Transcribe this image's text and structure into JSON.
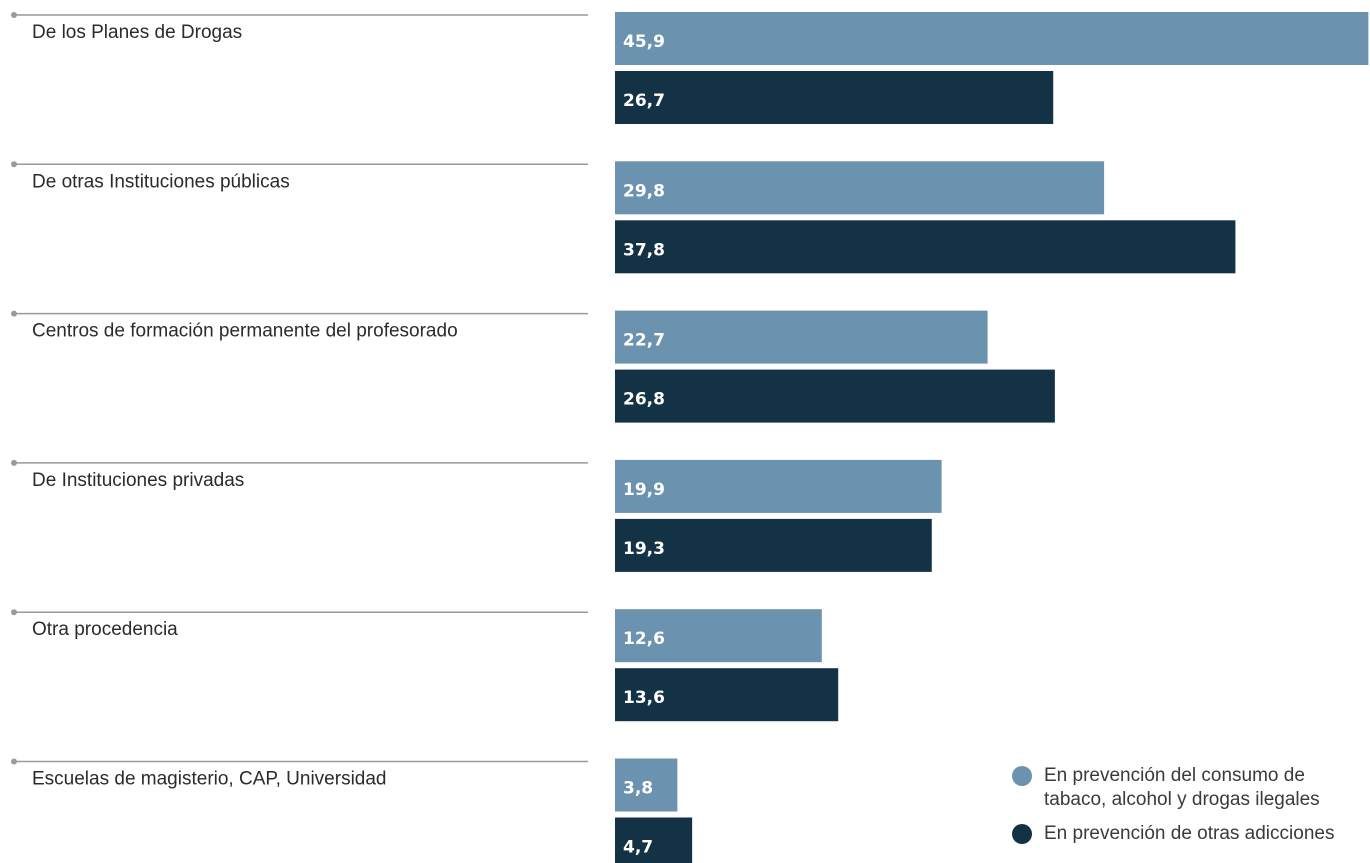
{
  "chart_data": {
    "type": "bar",
    "orientation": "horizontal",
    "categories": [
      "De los Planes de Drogas",
      "De otras Instituciones públicas",
      "Centros de formación permanente del profesorado",
      "De Instituciones privadas",
      "Otra procedencia",
      "Escuelas de magisterio, CAP, Universidad"
    ],
    "series": [
      {
        "name": "En prevención del consumo de tabaco, alcohol y drogas ilegales",
        "color": "#6b92ae",
        "values": [
          45.9,
          29.8,
          22.7,
          19.9,
          12.6,
          3.8
        ],
        "labels": [
          "45,9",
          "29,8",
          "22,7",
          "19,9",
          "12,6",
          "3,8"
        ]
      },
      {
        "name": "En prevención de otras adicciones",
        "color": "#143246",
        "values": [
          26.7,
          37.8,
          26.8,
          19.3,
          13.6,
          4.7
        ],
        "labels": [
          "26,7",
          "37,8",
          "26,8",
          "19,3",
          "13,6",
          "4,7"
        ]
      }
    ],
    "title": "",
    "xlabel": "",
    "ylabel": "",
    "xlim": [
      0,
      46
    ],
    "grid": false,
    "legend_position": "bottom-right"
  }
}
